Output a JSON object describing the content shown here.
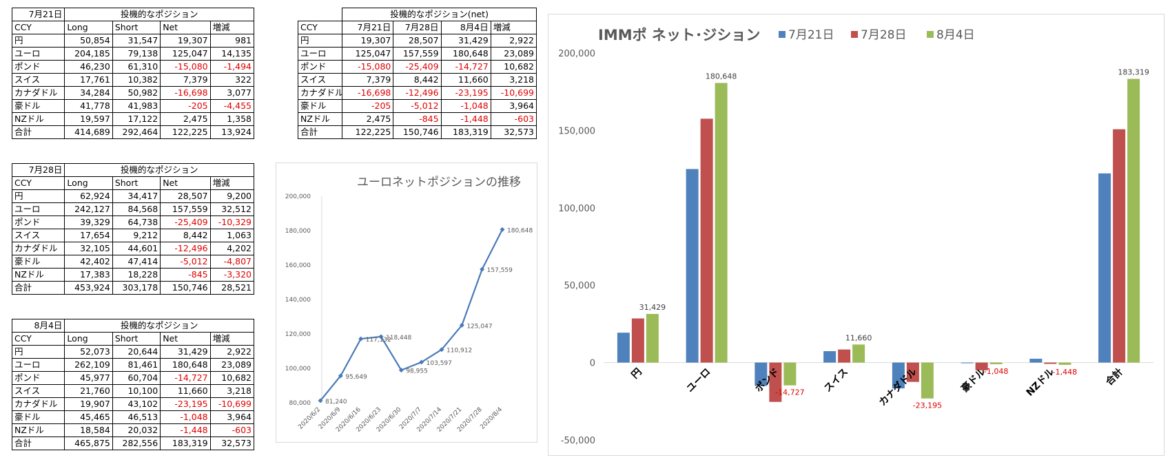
{
  "table_jul21": {
    "date": "7月21日",
    "title": "投機的なポジション",
    "headers": [
      "CCY",
      "Long",
      "Short",
      "Net",
      "増減"
    ],
    "rows": [
      [
        "円",
        "50,854",
        "31,547",
        "19,307",
        "981"
      ],
      [
        "ユーロ",
        "204,185",
        "79,138",
        "125,047",
        "14,135"
      ],
      [
        "ポンド",
        "46,230",
        "61,310",
        "-15,080",
        "-1,494"
      ],
      [
        "スイス",
        "17,761",
        "10,382",
        "7,379",
        "322"
      ],
      [
        "カナダドル",
        "34,284",
        "50,982",
        "-16,698",
        "3,077"
      ],
      [
        "豪ドル",
        "41,778",
        "41,983",
        "-205",
        "-4,455"
      ],
      [
        "NZドル",
        "19,597",
        "17,122",
        "2,475",
        "1,358"
      ],
      [
        "合計",
        "414,689",
        "292,464",
        "122,225",
        "13,924"
      ]
    ]
  },
  "table_jul28": {
    "date": "7月28日",
    "title": "投機的なポジション",
    "headers": [
      "CCY",
      "Long",
      "Short",
      "Net",
      "増減"
    ],
    "rows": [
      [
        "円",
        "62,924",
        "34,417",
        "28,507",
        "9,200"
      ],
      [
        "ユーロ",
        "242,127",
        "84,568",
        "157,559",
        "32,512"
      ],
      [
        "ポンド",
        "39,329",
        "64,738",
        "-25,409",
        "-10,329"
      ],
      [
        "スイス",
        "17,654",
        "9,212",
        "8,442",
        "1,063"
      ],
      [
        "カナダドル",
        "32,105",
        "44,601",
        "-12,496",
        "4,202"
      ],
      [
        "豪ドル",
        "42,402",
        "47,414",
        "-5,012",
        "-4,807"
      ],
      [
        "NZドル",
        "17,383",
        "18,228",
        "-845",
        "-3,320"
      ],
      [
        "合計",
        "453,924",
        "303,178",
        "150,746",
        "28,521"
      ]
    ]
  },
  "table_aug4": {
    "date": "8月4日",
    "title": "投機的なポジション",
    "headers": [
      "CCY",
      "Long",
      "Short",
      "Net",
      "増減"
    ],
    "rows": [
      [
        "円",
        "52,073",
        "20,644",
        "31,429",
        "2,922"
      ],
      [
        "ユーロ",
        "262,109",
        "81,461",
        "180,648",
        "23,089"
      ],
      [
        "ポンド",
        "45,977",
        "60,704",
        "-14,727",
        "10,682"
      ],
      [
        "スイス",
        "21,760",
        "10,100",
        "11,660",
        "3,218"
      ],
      [
        "カナダドル",
        "19,907",
        "43,102",
        "-23,195",
        "-10,699"
      ],
      [
        "豪ドル",
        "45,465",
        "46,513",
        "-1,048",
        "3,964"
      ],
      [
        "NZドル",
        "18,584",
        "20,032",
        "-1,448",
        "-603"
      ],
      [
        "合計",
        "465,875",
        "282,556",
        "183,319",
        "32,573"
      ]
    ]
  },
  "table_net": {
    "title": "投機的なポジション(net)",
    "headers": [
      "CCY",
      "7月21日",
      "7月28日",
      "8月4日",
      "増減"
    ],
    "rows": [
      [
        "円",
        "19,307",
        "28,507",
        "31,429",
        "2,922"
      ],
      [
        "ユーロ",
        "125,047",
        "157,559",
        "180,648",
        "23,089"
      ],
      [
        "ポンド",
        "-15,080",
        "-25,409",
        "-14,727",
        "10,682"
      ],
      [
        "スイス",
        "7,379",
        "8,442",
        "11,660",
        "3,218"
      ],
      [
        "カナダドル",
        "-16,698",
        "-12,496",
        "-23,195",
        "-10,699"
      ],
      [
        "豪ドル",
        "-205",
        "-5,012",
        "-1,048",
        "3,964"
      ],
      [
        "NZドル",
        "2,475",
        "-845",
        "-1,448",
        "-603"
      ],
      [
        "合計",
        "122,225",
        "150,746",
        "183,319",
        "32,573"
      ]
    ]
  },
  "chart_data": [
    {
      "type": "line",
      "title": "ユーロネットポジションの推移",
      "x": [
        "2020/6/2",
        "2020/6/9",
        "2020/6/16",
        "2020/6/23",
        "2020/6/30",
        "2020/7/7",
        "2020/7/14",
        "2020/7/21",
        "2020/7/28",
        "2020/8/4"
      ],
      "y": [
        81240,
        95649,
        117132,
        118448,
        98955,
        103597,
        110912,
        125047,
        157559,
        180648
      ],
      "data_labels": [
        "81,240",
        "95,649",
        "117,132",
        "118,448",
        "98,955",
        "103,597",
        "110,912",
        "125,047",
        "157,559",
        "180,648"
      ],
      "ylim": [
        80000,
        200000
      ],
      "yticks": [
        "80,000",
        "100,000",
        "120,000",
        "140,000",
        "160,000",
        "180,000",
        "200,000"
      ],
      "grid": false,
      "color": "#4a7ab8"
    },
    {
      "type": "bar",
      "title": "IMMポ ネット･ジション",
      "categories": [
        "円",
        "ユーロ",
        "ポンド",
        "スイス",
        "カナダドル",
        "豪ドル",
        "NZドル",
        "合計"
      ],
      "series": [
        {
          "name": "7月21日",
          "color": "#4f81bd",
          "values": [
            19307,
            125047,
            -15080,
            7379,
            -16698,
            -205,
            2475,
            122225
          ]
        },
        {
          "name": "7月28日",
          "color": "#c0504d",
          "values": [
            28507,
            157559,
            -25409,
            8442,
            -12496,
            -5012,
            -845,
            150746
          ]
        },
        {
          "name": "8月4日",
          "color": "#9bbb59",
          "values": [
            31429,
            180648,
            -14727,
            11660,
            -23195,
            -1048,
            -1448,
            183319
          ]
        }
      ],
      "data_labels": [
        {
          "series": 2,
          "category": 0,
          "text": "31,429"
        },
        {
          "series": 2,
          "category": 1,
          "text": "180,648"
        },
        {
          "series": 2,
          "category": 2,
          "text": "-14,727"
        },
        {
          "series": 2,
          "category": 3,
          "text": "11,660"
        },
        {
          "series": 2,
          "category": 4,
          "text": "-23,195"
        },
        {
          "series": 2,
          "category": 5,
          "text": "-1,048"
        },
        {
          "series": 2,
          "category": 6,
          "text": "-1,448"
        },
        {
          "series": 2,
          "category": 7,
          "text": "183,319"
        }
      ],
      "ylim": [
        -50000,
        200000
      ],
      "yticks": [
        "-50,000",
        "0",
        "50,000",
        "100,000",
        "150,000",
        "200,000"
      ],
      "legend": "top",
      "grid": false,
      "negative_label_color": "#e00000"
    }
  ]
}
